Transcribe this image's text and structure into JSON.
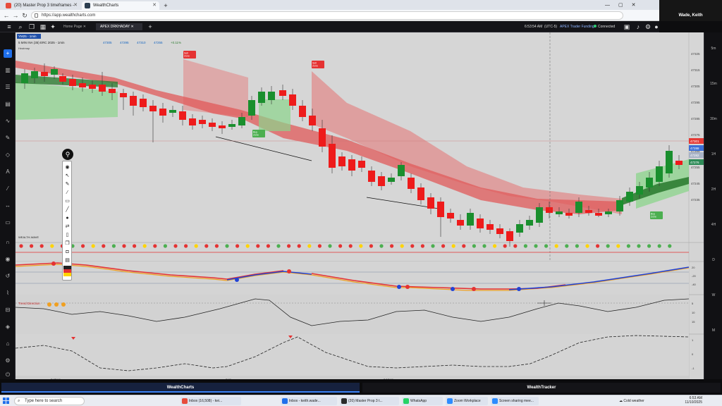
{
  "browser": {
    "tabs": [
      {
        "label": "(20) Master Prop 3 timeframes -",
        "active": false
      },
      {
        "label": "WealthCharts",
        "active": true
      }
    ],
    "new_tab": "+",
    "url": "https://app.wealthcharts.com",
    "window_controls": [
      "—",
      "▢",
      "✕"
    ]
  },
  "video_panel": {
    "name": "Wade, Keith"
  },
  "app": {
    "tabs": [
      {
        "label": "Home Page",
        "active": false
      },
      {
        "label": "APEX DRKHADAY",
        "active": true
      }
    ],
    "clock": "6:53:54 AM",
    "timezone": "(UTC-5)",
    "account": "APEX Trader Funding",
    "status": "Connected",
    "status_color": "#2ecc71",
    "bottom_tabs": [
      "WealthCharts",
      "WealthTracker"
    ]
  },
  "chart": {
    "symbol_badge": "YM25 - 1min",
    "legend_line": "5 MIN INA (35) ERC 2025 - 1min",
    "legend_values": [
      "47305",
      "47295",
      "47310",
      "47255",
      "+0.11%"
    ],
    "left_rails": [
      "Heatmap"
    ],
    "sell_zone_label": "Sell Zone",
    "buy_zone_label": "Buy Zone",
    "wealth_label": "WEALTH-WAVE",
    "trend_label": "Trend Direction",
    "time_labels": [
      "5:45am",
      "6am",
      "6:15am"
    ],
    "crosshair_time": "11/10/2025 6:30:00 AM",
    "price_axis": [
      "47325",
      "47315",
      "47305",
      "47295",
      "47285",
      "47275",
      "47265",
      "47255",
      "47245",
      "47235"
    ],
    "price_tags": [
      {
        "label": "47301",
        "color": "#e53935"
      },
      {
        "label": "47288",
        "color": "#3b6fd8"
      },
      {
        "label": "47282",
        "color": "#a9b3c6"
      },
      {
        "label": "47276",
        "color": "#2e8b57"
      }
    ],
    "pane_scales": {
      "wave": [
        "20",
        "-20",
        "-40"
      ],
      "trend": [
        "5",
        "10",
        "15"
      ],
      "osc": [
        "1",
        "0",
        "-1"
      ]
    },
    "right_rail": [
      "5m",
      "15m",
      "30m",
      "1H",
      "2H",
      "4H",
      "D",
      "W",
      "M"
    ],
    "colors": {
      "up": "#1a8f2e",
      "down": "#ee1b1b",
      "sell_zone": "#e67373",
      "buy_zone": "#8bd48b",
      "wave_red": "#e53232",
      "wave_blue": "#2243d6",
      "wave_orange": "#f0a020"
    }
  },
  "taskbar": {
    "search_placeholder": "Type here to search",
    "apps": [
      {
        "label": "Inbox (16,508) - kei...",
        "color": "#e74c3c"
      },
      {
        "label": "Inbox - keith.wade...",
        "color": "#1f6feb"
      },
      {
        "label": "(20) Master Prop 3 t...",
        "color": "#2b2b2b"
      },
      {
        "label": "WhatsApp",
        "color": "#25d366"
      },
      {
        "label": "Zoom Workplace",
        "color": "#2d8cff"
      },
      {
        "label": "Screen sharing mee...",
        "color": "#2d8cff"
      }
    ],
    "weather": "Cold weather",
    "time": "6:53 AM",
    "date": "11/10/2025"
  }
}
